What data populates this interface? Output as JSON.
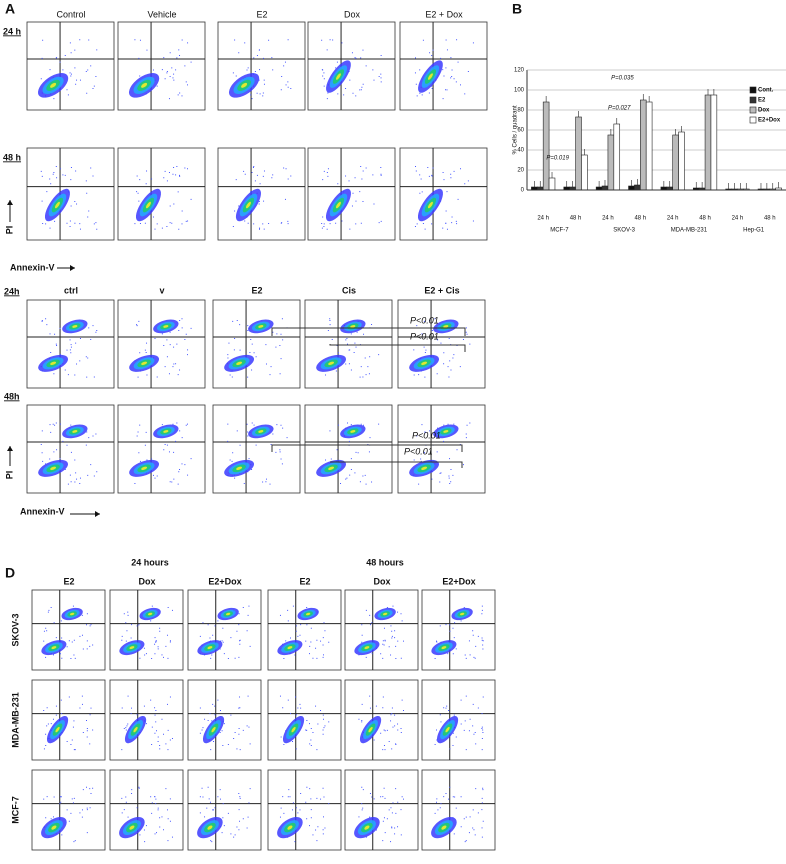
{
  "panel_a": {
    "label": "A",
    "top": {
      "columns": [
        "Control",
        "Vehicle",
        "E2",
        "Dox",
        "E2 + Dox"
      ],
      "rows": [
        "24 h",
        "48 h"
      ],
      "y_axis": "PI",
      "x_axis": "Annexin-V"
    },
    "bottom": {
      "columns": [
        "ctrl",
        "v",
        "E2",
        "Cis",
        "E2 + Cis"
      ],
      "rows": [
        "24h",
        "48h"
      ],
      "annotations": [
        "P<0.01",
        "P<0.01",
        "P<0.01",
        "P<0.01"
      ],
      "y_axis": "PI",
      "x_axis": "Annexin-V"
    }
  },
  "chart_data": {
    "type": "bar",
    "label": "B",
    "y_label": "% Cells / quadrant",
    "categories": [
      "24 h",
      "48 h",
      "24 h",
      "48 h",
      "24 h",
      "48 h",
      "24 h",
      "48 h"
    ],
    "groups": [
      "MCF-7",
      "SKOV-3",
      "MDA-MB-231",
      "Hep-G1"
    ],
    "series": [
      {
        "name": "Cont.",
        "color": "#111111",
        "values": [
          3,
          3,
          3,
          4,
          3,
          2,
          1,
          1
        ]
      },
      {
        "name": "E2",
        "color": "#333333",
        "values": [
          3,
          3,
          4,
          5,
          3,
          2,
          1,
          1
        ]
      },
      {
        "name": "Dox",
        "color": "#bbbbbb",
        "values": [
          88,
          73,
          55,
          90,
          55,
          95,
          1,
          1
        ]
      },
      {
        "name": "E2+Dox",
        "color": "#ffffff",
        "values": [
          12,
          35,
          66,
          88,
          58,
          95,
          1,
          2
        ]
      }
    ],
    "annotations": [
      "P=0.019",
      "P=0.027",
      "P=0.035"
    ],
    "ylim": [
      0,
      120
    ],
    "yticks": [
      0,
      20,
      40,
      60,
      80,
      100,
      120
    ],
    "grid": true,
    "legend": "right"
  },
  "panel_d": {
    "label": "D",
    "time_groups": [
      "24 hours",
      "48 hours"
    ],
    "columns": [
      "E2",
      "Dox",
      "E2+Dox",
      "E2",
      "Dox",
      "E2+Dox"
    ],
    "rows": [
      "SKOV-3",
      "MDA-MB-231",
      "MCF-7"
    ]
  }
}
